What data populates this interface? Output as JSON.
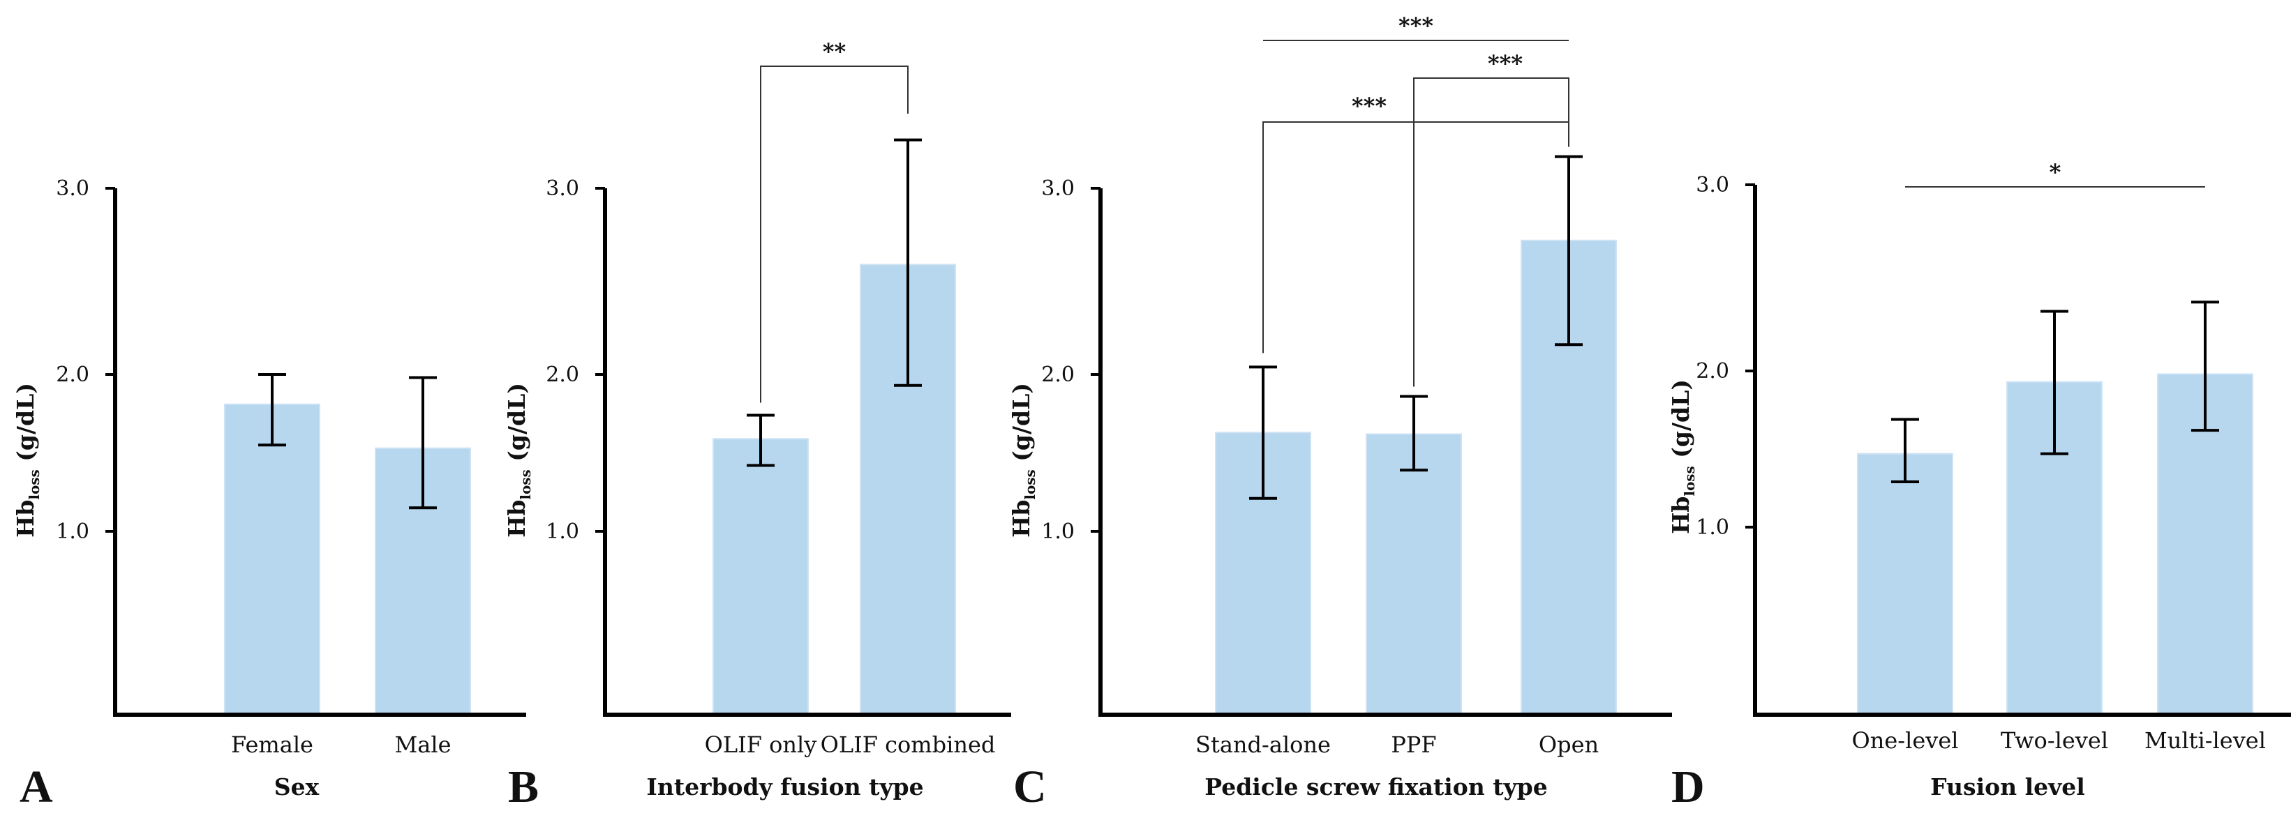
{
  "colors": {
    "bar": "#b7d7ef",
    "bar_edge": "#cfe3f4",
    "axis": "#000000",
    "bracket": "#333333"
  },
  "chart_data": [
    {
      "panel": "A",
      "type": "bar",
      "title": "",
      "xlabel": "Sex",
      "ylabel": {
        "main": "Hb",
        "sub": "loss",
        "unit": " (g/dL)"
      },
      "yticks": [
        1.0,
        2.0,
        3.0
      ],
      "categories": [
        "Female",
        "Male"
      ],
      "values": [
        1.81,
        1.53
      ],
      "error": [
        [
          1.55,
          2.0
        ],
        [
          1.15,
          1.98
        ]
      ],
      "significance": []
    },
    {
      "panel": "B",
      "type": "bar",
      "title": "",
      "xlabel": "Interbody fusion type",
      "ylabel": {
        "main": "Hb",
        "sub": "loss",
        "unit": " (g/dL)"
      },
      "yticks": [
        1.0,
        2.0,
        3.0
      ],
      "categories": [
        "OLIF only",
        "OLIF combined"
      ],
      "values": [
        1.59,
        2.59
      ],
      "error": [
        [
          1.42,
          1.74
        ],
        [
          1.93,
          3.26
        ]
      ],
      "significance": [
        {
          "from": 0,
          "to": 1,
          "label": "**"
        }
      ]
    },
    {
      "panel": "C",
      "type": "bar",
      "title": "",
      "xlabel": "Pedicle screw fixation type",
      "ylabel": {
        "main": "Hb",
        "sub": "loss",
        "unit": " (g/dL)"
      },
      "yticks": [
        1.0,
        2.0,
        3.0
      ],
      "categories": [
        "Stand-alone",
        "PPF",
        "Open"
      ],
      "values": [
        1.63,
        1.62,
        2.72
      ],
      "error": [
        [
          1.21,
          2.04
        ],
        [
          1.39,
          1.86
        ],
        [
          2.16,
          3.17
        ]
      ],
      "significance": [
        {
          "from": 0,
          "to": 2,
          "label": "***"
        },
        {
          "from": 1,
          "to": 2,
          "label": "***"
        },
        {
          "from": 0,
          "to": 2,
          "label": "***"
        }
      ]
    },
    {
      "panel": "D",
      "type": "bar",
      "title": "",
      "xlabel": "Fusion level",
      "ylabel": {
        "main": "Hb",
        "sub": "loss",
        "unit": " (g/dL)"
      },
      "yticks": [
        1.0,
        2.0,
        3.0
      ],
      "categories": [
        "One-level",
        "Two-level",
        "Multi-level"
      ],
      "values": [
        1.47,
        1.93,
        1.98
      ],
      "error": [
        [
          1.29,
          1.69
        ],
        [
          1.47,
          2.32
        ],
        [
          1.62,
          2.37
        ]
      ],
      "significance": [
        {
          "from": 0,
          "to": 2,
          "label": "*"
        }
      ]
    }
  ]
}
